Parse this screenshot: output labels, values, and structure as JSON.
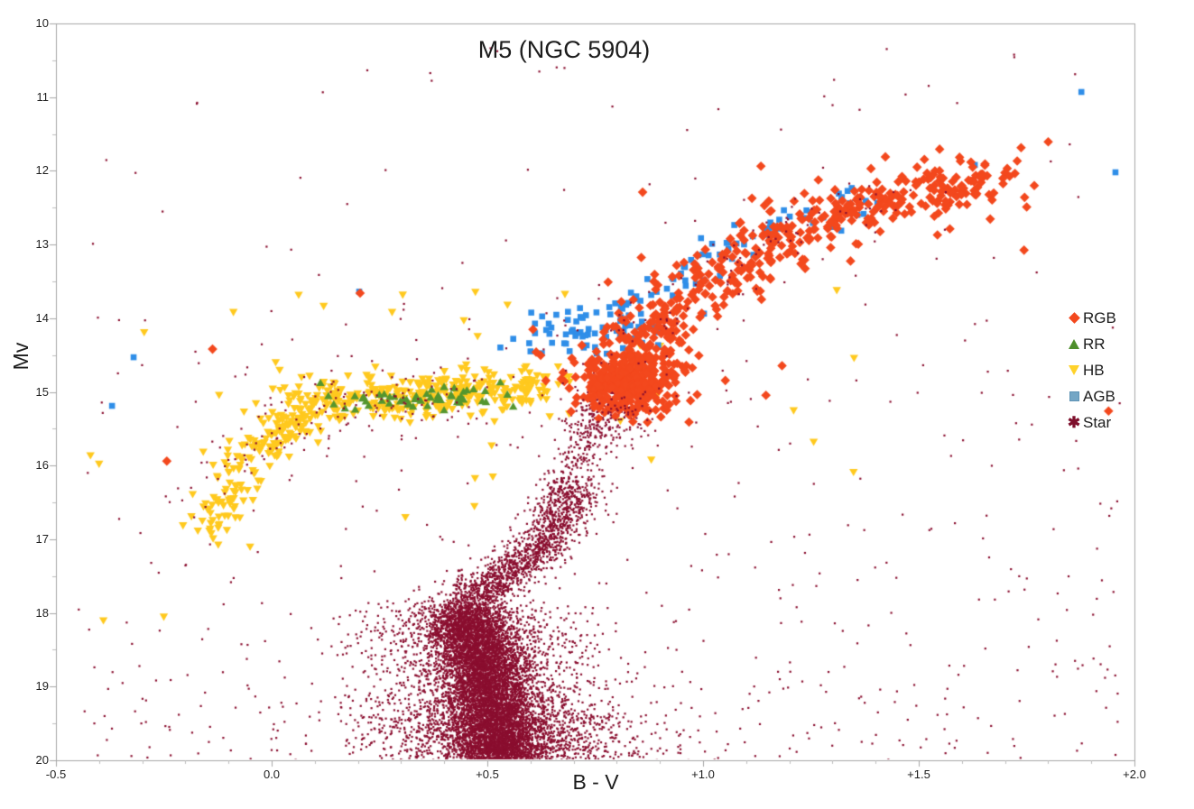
{
  "chart_data": {
    "type": "scatter",
    "title": "M5 (NGC 5904)",
    "xlabel": "B - V",
    "ylabel": "Mv",
    "xlim": [
      -0.5,
      2.0
    ],
    "ylim": [
      20,
      10
    ],
    "y_axis_inverted": true,
    "grid": false,
    "legend_position": "inside-right",
    "axis_color": "#a6a6a6",
    "minor_tick_color": "#bdbdbd",
    "x_major_ticks": [
      {
        "v": -0.5,
        "label": "-0.5"
      },
      {
        "v": 0.0,
        "label": "0.0"
      },
      {
        "v": 0.5,
        "label": "+0.5"
      },
      {
        "v": 1.0,
        "label": "+1.0"
      },
      {
        "v": 1.5,
        "label": "+1.5"
      },
      {
        "v": 2.0,
        "label": "+2.0"
      }
    ],
    "x_minor_step": 0.1,
    "y_major_ticks": [
      {
        "v": 10,
        "label": "10"
      },
      {
        "v": 11,
        "label": "11"
      },
      {
        "v": 12,
        "label": "12"
      },
      {
        "v": 13,
        "label": "13"
      },
      {
        "v": 14,
        "label": "14"
      },
      {
        "v": 15,
        "label": "15"
      },
      {
        "v": 16,
        "label": "16"
      },
      {
        "v": 17,
        "label": "17"
      },
      {
        "v": 18,
        "label": "18"
      },
      {
        "v": 19,
        "label": "19"
      },
      {
        "v": 20,
        "label": "20"
      }
    ],
    "y_minor_step": 0.5,
    "series": [
      {
        "name": "RGB",
        "marker": "diamond",
        "color": "#f3481d",
        "legend_color": "#f3481d",
        "size": 4.3,
        "z": 5,
        "clusters": [
          {
            "id": "base-clump",
            "type": "blob",
            "cx": 0.825,
            "cy": 14.92,
            "sx": 0.05,
            "sy": 0.2,
            "n": 270
          },
          {
            "id": "base-spread",
            "type": "blob",
            "cx": 0.84,
            "cy": 14.78,
            "sx": 0.09,
            "sy": 0.32,
            "n": 110
          },
          {
            "id": "giant-branch",
            "type": "path",
            "path": [
              [
                0.84,
                14.5
              ],
              [
                0.89,
                14.15
              ],
              [
                0.95,
                13.85
              ],
              [
                1.02,
                13.5
              ],
              [
                1.1,
                13.15
              ],
              [
                1.2,
                12.85
              ],
              [
                1.32,
                12.58
              ],
              [
                1.46,
                12.35
              ],
              [
                1.59,
                12.18
              ],
              [
                1.71,
                12.1
              ]
            ],
            "n": 400,
            "sx": 0.05,
            "sy": 0.16,
            "bias": 1.35
          },
          {
            "id": "branch-stray",
            "type": "path",
            "path": [
              [
                0.84,
                14.5
              ],
              [
                0.89,
                14.15
              ],
              [
                0.95,
                13.85
              ],
              [
                1.02,
                13.5
              ],
              [
                1.1,
                13.15
              ],
              [
                1.2,
                12.85
              ],
              [
                1.32,
                12.58
              ],
              [
                1.46,
                12.35
              ],
              [
                1.59,
                12.18
              ],
              [
                1.71,
                12.1
              ]
            ],
            "n": 55,
            "sx": 0.13,
            "sy": 0.4,
            "bias": 1.2
          }
        ],
        "outliers": [
          [
            -0.137,
            14.42
          ],
          [
            -0.243,
            15.94
          ],
          [
            0.205,
            13.66
          ],
          [
            0.86,
            12.29
          ],
          [
            1.94,
            15.26
          ]
        ]
      },
      {
        "name": "RR",
        "marker": "tri_up",
        "color": "#55962e",
        "legend_color": "#4e8f2c",
        "size": 4.7,
        "z": 3,
        "clusters": [
          {
            "id": "instability-strip",
            "type": "path",
            "path": [
              [
                0.175,
                15.12
              ],
              [
                0.3,
                15.1
              ],
              [
                0.42,
                15.07
              ],
              [
                0.5,
                15.05
              ]
            ],
            "n": 50,
            "sx": 0.04,
            "sy": 0.075
          }
        ],
        "outliers": [
          [
            0.113,
            14.88
          ],
          [
            0.53,
            14.87
          ],
          [
            0.56,
            15.2
          ],
          [
            0.144,
            15.17
          ]
        ]
      },
      {
        "name": "HB",
        "marker": "tri_down",
        "color": "#ffc91e",
        "legend_color": "#ffd22a",
        "size": 4.7,
        "z": 2,
        "clusters": [
          {
            "id": "horizontal-branch",
            "type": "path",
            "path": [
              [
                0.125,
                15.1
              ],
              [
                0.25,
                15.06
              ],
              [
                0.4,
                15.02
              ],
              [
                0.55,
                14.98
              ],
              [
                0.645,
                14.93
              ]
            ],
            "n": 300,
            "sx": 0.045,
            "sy": 0.14
          },
          {
            "id": "bend-knot",
            "type": "blob",
            "cx": 0.09,
            "cy": 15.28,
            "sx": 0.05,
            "sy": 0.18,
            "n": 60
          },
          {
            "id": "blue-tail",
            "type": "path",
            "path": [
              [
                0.06,
                15.35
              ],
              [
                0.0,
                15.65
              ],
              [
                -0.05,
                15.95
              ],
              [
                -0.09,
                16.25
              ],
              [
                -0.12,
                16.55
              ],
              [
                -0.14,
                16.85
              ]
            ],
            "n": 150,
            "sx": 0.03,
            "sy": 0.16
          },
          {
            "id": "sprinkle-above",
            "type": "uniform",
            "x": [
              -0.3,
              0.95
            ],
            "y": [
              13.6,
              14.75
            ],
            "n": 20
          },
          {
            "id": "sprinkle-wide",
            "type": "uniform",
            "x": [
              -0.45,
              1.38
            ],
            "y": [
              14.8,
              16.5
            ],
            "n": 12
          }
        ],
        "outliers": [
          [
            -0.25,
            18.05
          ],
          [
            -0.39,
            18.1
          ],
          [
            0.47,
            16.55
          ],
          [
            -0.42,
            15.86
          ],
          [
            1.31,
            13.62
          ],
          [
            1.35,
            14.54
          ],
          [
            0.88,
            15.92
          ],
          [
            1.21,
            15.25
          ],
          [
            0.31,
            16.7
          ],
          [
            -0.05,
            17.1
          ]
        ]
      },
      {
        "name": "AGB",
        "marker": "square",
        "color": "#2f8ee8",
        "legend_color": "#74a6c5",
        "legend_border": "#5e93b5",
        "size": 3.3,
        "z": 4,
        "clusters": [
          {
            "id": "agb-clump",
            "type": "blob",
            "cx": 0.745,
            "cy": 14.18,
            "sx": 0.08,
            "sy": 0.17,
            "n": 72
          },
          {
            "id": "agb-branch",
            "type": "path",
            "path": [
              [
                0.84,
                13.82
              ],
              [
                0.92,
                13.55
              ],
              [
                1.0,
                13.28
              ],
              [
                1.09,
                13.0
              ],
              [
                1.19,
                12.75
              ],
              [
                1.3,
                12.52
              ],
              [
                1.42,
                12.32
              ]
            ],
            "n": 70,
            "sx": 0.045,
            "sy": 0.13,
            "bias": 1.15
          }
        ],
        "outliers": [
          [
            1.63,
            11.92
          ],
          [
            1.877,
            10.93
          ],
          [
            1.956,
            12.02
          ],
          [
            0.203,
            13.64
          ],
          [
            -0.32,
            14.53
          ],
          [
            -0.37,
            15.19
          ],
          [
            0.56,
            14.28
          ],
          [
            0.6,
            14.45
          ]
        ]
      },
      {
        "name": "Star",
        "marker": "dot",
        "color": "#8a0e2f",
        "legend_color": "#7e0f2c",
        "legend_glyph": "✱",
        "size": 1.1,
        "z": 1,
        "clusters": [
          {
            "id": "ms-core",
            "type": "path",
            "path": [
              [
                0.455,
                17.95
              ],
              [
                0.465,
                18.25
              ],
              [
                0.485,
                18.6
              ],
              [
                0.505,
                19.0
              ],
              [
                0.515,
                19.4
              ],
              [
                0.525,
                19.75
              ],
              [
                0.535,
                20.05
              ]
            ],
            "n": 6200,
            "sx": 0.05,
            "sy": 0.09
          },
          {
            "id": "ms-halo",
            "type": "path",
            "path": [
              [
                0.455,
                17.95
              ],
              [
                0.465,
                18.25
              ],
              [
                0.485,
                18.6
              ],
              [
                0.505,
                19.0
              ],
              [
                0.515,
                19.4
              ],
              [
                0.525,
                19.75
              ],
              [
                0.535,
                20.05
              ]
            ],
            "n": 2300,
            "sx": 0.13,
            "sy": 0.13
          },
          {
            "id": "ms-bottom-flare",
            "type": "path",
            "path": [
              [
                0.5,
                19.3
              ],
              [
                0.55,
                19.7
              ],
              [
                0.6,
                20.05
              ]
            ],
            "n": 1100,
            "sx": 0.17,
            "sy": 0.12
          },
          {
            "id": "turnoff-subgiant",
            "type": "path",
            "path": [
              [
                0.445,
                17.85
              ],
              [
                0.5,
                17.68
              ],
              [
                0.56,
                17.42
              ],
              [
                0.62,
                17.1
              ],
              [
                0.66,
                16.8
              ],
              [
                0.685,
                16.5
              ],
              [
                0.7,
                16.2
              ]
            ],
            "n": 1500,
            "sx": 0.035,
            "sy": 0.11
          },
          {
            "id": "lower-rgb",
            "type": "path",
            "path": [
              [
                0.7,
                16.1
              ],
              [
                0.73,
                15.6
              ],
              [
                0.76,
                15.2
              ],
              [
                0.8,
                14.75
              ]
            ],
            "n": 330,
            "sx": 0.032,
            "sy": 0.1
          },
          {
            "id": "rgb-base-sprinkle",
            "type": "blob",
            "cx": 0.8,
            "cy": 15.45,
            "sx": 0.05,
            "sy": 0.22,
            "n": 90,
            "layer": "top"
          },
          {
            "id": "giant-sprinkle",
            "type": "path",
            "path": [
              [
                0.8,
                14.4
              ],
              [
                0.92,
                13.8
              ],
              [
                1.06,
                13.2
              ],
              [
                1.26,
                12.7
              ],
              [
                1.45,
                12.3
              ]
            ],
            "n": 70,
            "sx": 0.06,
            "sy": 0.18,
            "layer": "top"
          },
          {
            "id": "hb-sprinkle",
            "type": "path",
            "path": [
              [
                -0.1,
                16.15
              ],
              [
                0.0,
                15.6
              ],
              [
                0.14,
                15.2
              ],
              [
                0.3,
                15.1
              ],
              [
                0.48,
                15.05
              ]
            ],
            "n": 120,
            "sx": 0.05,
            "sy": 0.28,
            "layer": "top"
          },
          {
            "id": "field-bottom",
            "type": "uniform",
            "x": [
              -0.45,
              1.97
            ],
            "y": [
              18.6,
              20.0
            ],
            "n": 240,
            "layer": "top"
          },
          {
            "id": "field-low",
            "type": "uniform",
            "x": [
              -0.45,
              1.97
            ],
            "y": [
              16.8,
              18.6
            ],
            "n": 130,
            "layer": "top"
          },
          {
            "id": "field-mid",
            "type": "uniform",
            "x": [
              -0.45,
              1.97
            ],
            "y": [
              13.8,
              16.8
            ],
            "n": 160,
            "layer": "top"
          },
          {
            "id": "field-high",
            "type": "uniform",
            "x": [
              -0.45,
              1.97
            ],
            "y": [
              10.3,
              13.8
            ],
            "n": 65,
            "layer": "top"
          }
        ],
        "outliers": []
      }
    ]
  }
}
